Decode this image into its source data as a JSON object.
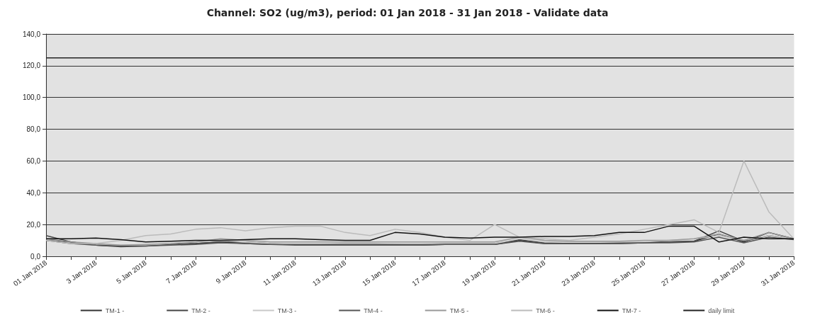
{
  "chart_data": {
    "type": "line",
    "title": "Channel: SO2 (ug/m3), period: 01 Jan 2018 - 31 Jan 2018 - Validate data",
    "categories": [
      "01 Jan 2018",
      null,
      "3 Jan 2018",
      null,
      "5 Jan 2018",
      null,
      "7 Jan 2018",
      null,
      "9 Jan 2018",
      null,
      "11 Jan 2018",
      null,
      "13 Jan 2018",
      null,
      "15 Jan 2018",
      null,
      "17 Jan 2018",
      null,
      "19 Jan 2018",
      null,
      "21 Jan 2018",
      null,
      "23 Jan 2018",
      null,
      "25 Jan 2018",
      null,
      "27 Jan 2018",
      null,
      "29 Jan 2018",
      null,
      "31 Jan 2018"
    ],
    "series": [
      {
        "name": "TM-1 -",
        "color": "#333333",
        "values": [
          10,
          9,
          7,
          6.5,
          7,
          7.5,
          8,
          9,
          8,
          7.5,
          7.5,
          7.5,
          8,
          8,
          7.5,
          7,
          7.5,
          7.5,
          7.5,
          10,
          8,
          8,
          8,
          8,
          8.5,
          9,
          9.5,
          14,
          9,
          15,
          11
        ]
      },
      {
        "name": "TM-2 -",
        "color": "#444444",
        "values": [
          13,
          9,
          7,
          6,
          6.5,
          7.5,
          8,
          9,
          9,
          8,
          7.5,
          7.5,
          7.5,
          7.5,
          7.5,
          7.5,
          8,
          8,
          8,
          10.5,
          8.5,
          8,
          8,
          8.5,
          9,
          9,
          9.5,
          16,
          9.5,
          13,
          11
        ]
      },
      {
        "name": "TM-3 -",
        "color": "#c8c8c8",
        "values": [
          10,
          8,
          7,
          7,
          7,
          8,
          9,
          10,
          9,
          8,
          8,
          8,
          8,
          8,
          8,
          8,
          8,
          8,
          8,
          11,
          9,
          9,
          9,
          9,
          9,
          10,
          11,
          13,
          10,
          13,
          11
        ]
      },
      {
        "name": "TM-4 -",
        "color": "#555555",
        "values": [
          10,
          8,
          7,
          6.5,
          6.5,
          7,
          7.5,
          8.5,
          8,
          7.5,
          7,
          7,
          7,
          7,
          7,
          7,
          7.5,
          7.5,
          7.5,
          9.5,
          8,
          8,
          8,
          8,
          8.5,
          8.5,
          9,
          12,
          8.5,
          12,
          10.5
        ]
      },
      {
        "name": "TM-5 -",
        "color": "#999999",
        "values": [
          11,
          9,
          8,
          7,
          7.5,
          8,
          9,
          11,
          10,
          9,
          9,
          9,
          9,
          9,
          9,
          9,
          9,
          9,
          9,
          12,
          10,
          9.5,
          9.5,
          9.5,
          10,
          10,
          11,
          14,
          10,
          15,
          11
        ]
      },
      {
        "name": "TM-6 -",
        "color": "#bbbbbb",
        "values": [
          10,
          8,
          8,
          10,
          13,
          14,
          17,
          18,
          16,
          18,
          19,
          19,
          15,
          13,
          17,
          15,
          12,
          10,
          20,
          12,
          11,
          10,
          12,
          14,
          17,
          20,
          23,
          15,
          60,
          28,
          11
        ]
      },
      {
        "name": "TM-7 -",
        "color": "#111111",
        "values": [
          11,
          11,
          11.5,
          10.5,
          9,
          9.5,
          10,
          10,
          10.5,
          11,
          11,
          10.5,
          10,
          10,
          15,
          14,
          12,
          11.5,
          12,
          12,
          12.5,
          12.5,
          13,
          15,
          15,
          19,
          19,
          9,
          12,
          11,
          11
        ]
      },
      {
        "name": "daily limit",
        "color": "#222222",
        "values": [
          125,
          125,
          125,
          125,
          125,
          125,
          125,
          125,
          125,
          125,
          125,
          125,
          125,
          125,
          125,
          125,
          125,
          125,
          125,
          125,
          125,
          125,
          125,
          125,
          125,
          125,
          125,
          125,
          125,
          125,
          125
        ]
      }
    ],
    "ylim": [
      0,
      140
    ],
    "yticks": [
      {
        "value": 0,
        "label": "0,0"
      },
      {
        "value": 20,
        "label": "20,0"
      },
      {
        "value": 40,
        "label": "40,0"
      },
      {
        "value": 60,
        "label": "60,0"
      },
      {
        "value": 80,
        "label": "80,0"
      },
      {
        "value": 100,
        "label": "100,0"
      },
      {
        "value": 120,
        "label": "120,0"
      },
      {
        "value": 140,
        "label": "140,0"
      }
    ],
    "grid": "y",
    "legend": "bottom",
    "marker": "none",
    "line_style": "solid"
  }
}
